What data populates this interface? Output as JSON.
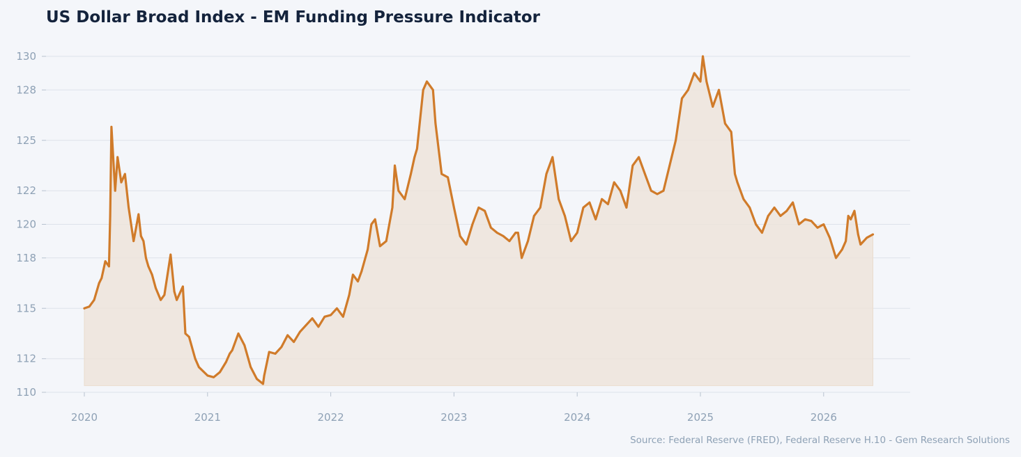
{
  "chart_data": {
    "type": "area",
    "title": "US Dollar Broad Index - EM Funding Pressure Indicator",
    "xlabel": "",
    "ylabel": "",
    "ylim": [
      110,
      130.5
    ],
    "yticks": [
      110,
      112,
      115,
      118,
      120,
      122,
      125,
      128,
      130
    ],
    "ytick_labels": [
      "110",
      "112",
      "115",
      "118",
      "120",
      "122",
      "125",
      "128",
      "130"
    ],
    "xlim": [
      2019.7,
      2026.72
    ],
    "xticks": [
      2020,
      2021,
      2022,
      2023,
      2024,
      2025,
      2026
    ],
    "xtick_labels": [
      "2020",
      "2021",
      "2022",
      "2023",
      "2024",
      "2025",
      "2026"
    ],
    "grid": true,
    "legend": "none",
    "fill_baseline": 110.4,
    "series": [
      {
        "color": "#d07b2a",
        "fill_color": "#ede4da",
        "x": [
          2020.0,
          2020.04,
          2020.08,
          2020.12,
          2020.14,
          2020.17,
          2020.2,
          2020.21,
          2020.22,
          2020.25,
          2020.27,
          2020.3,
          2020.33,
          2020.36,
          2020.4,
          2020.42,
          2020.44,
          2020.46,
          2020.48,
          2020.5,
          2020.52,
          2020.55,
          2020.58,
          2020.62,
          2020.65,
          2020.7,
          2020.73,
          2020.75,
          2020.8,
          2020.82,
          2020.85,
          2020.9,
          2020.93,
          2021.0,
          2021.05,
          2021.1,
          2021.15,
          2021.18,
          2021.2,
          2021.25,
          2021.3,
          2021.35,
          2021.4,
          2021.45,
          2021.46,
          2021.5,
          2021.55,
          2021.6,
          2021.65,
          2021.7,
          2021.75,
          2021.8,
          2021.85,
          2021.9,
          2021.95,
          2022.0,
          2022.05,
          2022.1,
          2022.15,
          2022.18,
          2022.22,
          2022.25,
          2022.3,
          2022.33,
          2022.36,
          2022.4,
          2022.45,
          2022.5,
          2022.52,
          2022.55,
          2022.6,
          2022.65,
          2022.68,
          2022.7,
          2022.75,
          2022.78,
          2022.83,
          2022.85,
          2022.9,
          2022.95,
          2023.0,
          2023.05,
          2023.1,
          2023.15,
          2023.2,
          2023.25,
          2023.3,
          2023.35,
          2023.4,
          2023.45,
          2023.5,
          2023.52,
          2023.55,
          2023.6,
          2023.65,
          2023.7,
          2023.75,
          2023.8,
          2023.85,
          2023.9,
          2023.95,
          2024.0,
          2024.05,
          2024.1,
          2024.15,
          2024.2,
          2024.25,
          2024.3,
          2024.35,
          2024.4,
          2024.45,
          2024.5,
          2024.55,
          2024.6,
          2024.65,
          2024.7,
          2024.75,
          2024.8,
          2024.85,
          2024.9,
          2024.95,
          2025.0,
          2025.02,
          2025.05,
          2025.1,
          2025.15,
          2025.2,
          2025.25,
          2025.28,
          2025.3,
          2025.35,
          2025.4,
          2025.45,
          2025.5,
          2025.55,
          2025.6,
          2025.65,
          2025.7,
          2025.75,
          2025.8,
          2025.85,
          2025.9,
          2025.95,
          2026.0,
          2026.05,
          2026.1,
          2026.15,
          2026.18,
          2026.2,
          2026.22,
          2026.25,
          2026.28,
          2026.3,
          2026.35,
          2026.4
        ],
        "values": [
          115.0,
          115.1,
          115.5,
          116.5,
          116.8,
          117.8,
          117.5,
          120.5,
          125.8,
          122.0,
          124.0,
          122.5,
          123.0,
          121.0,
          119.0,
          119.8,
          120.6,
          119.3,
          119.0,
          118.0,
          117.5,
          117.0,
          116.2,
          115.5,
          115.8,
          118.2,
          116.0,
          115.5,
          116.3,
          113.5,
          113.3,
          112.0,
          111.5,
          111.0,
          110.9,
          111.2,
          111.8,
          112.3,
          112.5,
          113.5,
          112.8,
          111.5,
          110.8,
          110.5,
          111.0,
          112.4,
          112.3,
          112.7,
          113.4,
          113.0,
          113.6,
          114.0,
          114.4,
          113.9,
          114.5,
          114.6,
          115.0,
          114.5,
          115.8,
          117.0,
          116.6,
          117.2,
          118.5,
          120.0,
          120.3,
          118.7,
          119.0,
          121.0,
          123.5,
          122.0,
          121.5,
          123.0,
          124.0,
          124.5,
          128.0,
          128.5,
          128.0,
          126.0,
          123.0,
          122.8,
          121.0,
          119.3,
          118.8,
          120.0,
          121.0,
          120.8,
          119.8,
          119.5,
          119.3,
          119.0,
          119.5,
          119.5,
          118.0,
          119.0,
          120.5,
          121.0,
          123.0,
          124.0,
          121.5,
          120.5,
          119.0,
          119.5,
          121.0,
          121.3,
          120.3,
          121.5,
          121.2,
          122.5,
          122.0,
          121.0,
          123.5,
          124.0,
          123.0,
          122.0,
          121.8,
          122.0,
          123.5,
          125.0,
          127.5,
          128.0,
          129.0,
          128.5,
          130.0,
          128.5,
          127.0,
          128.0,
          126.0,
          125.5,
          123.0,
          122.5,
          121.5,
          121.0,
          120.0,
          119.5,
          120.5,
          121.0,
          120.5,
          120.8,
          121.3,
          120.0,
          120.3,
          120.2,
          119.8,
          120.0,
          119.2,
          118.0,
          118.5,
          119.0,
          120.5,
          120.3,
          120.8,
          119.4,
          118.8,
          119.2,
          119.4
        ]
      }
    ]
  },
  "source": "Source: Federal Reserve (FRED), Federal Reserve H.10 - Gem Research Solutions"
}
